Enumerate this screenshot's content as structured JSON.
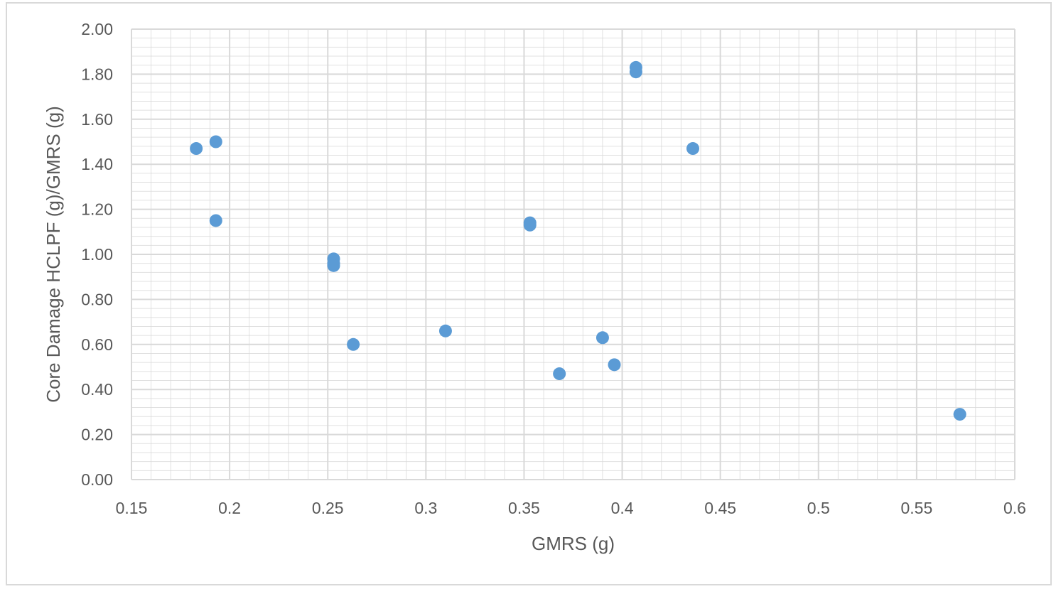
{
  "chart_data": {
    "type": "scatter",
    "title": "",
    "xlabel": "GMRS (g)",
    "ylabel": "Core Damage HCLPF (g)/GMRS (g)",
    "xlim": [
      0.15,
      0.6
    ],
    "ylim": [
      0.0,
      2.0
    ],
    "x_ticks": [
      "0.15",
      "0.2",
      "0.25",
      "0.3",
      "0.35",
      "0.4",
      "0.45",
      "0.5",
      "0.55",
      "0.6"
    ],
    "y_ticks": [
      "0.00",
      "0.20",
      "0.40",
      "0.60",
      "0.80",
      "1.00",
      "1.20",
      "1.40",
      "1.60",
      "1.80",
      "2.00"
    ],
    "grid": true,
    "minor_grid": true,
    "legend": "none",
    "marker_color": "#5b9bd5",
    "gridline_color": "#d9d9d9",
    "series": [
      {
        "points": [
          {
            "x": 0.183,
            "y": 1.47
          },
          {
            "x": 0.193,
            "y": 1.5
          },
          {
            "x": 0.193,
            "y": 1.15
          },
          {
            "x": 0.253,
            "y": 0.98
          },
          {
            "x": 0.253,
            "y": 0.96
          },
          {
            "x": 0.253,
            "y": 0.95
          },
          {
            "x": 0.263,
            "y": 0.6
          },
          {
            "x": 0.31,
            "y": 0.66
          },
          {
            "x": 0.353,
            "y": 1.14
          },
          {
            "x": 0.353,
            "y": 1.13
          },
          {
            "x": 0.368,
            "y": 0.47
          },
          {
            "x": 0.39,
            "y": 0.63
          },
          {
            "x": 0.396,
            "y": 0.51
          },
          {
            "x": 0.407,
            "y": 1.83
          },
          {
            "x": 0.407,
            "y": 1.81
          },
          {
            "x": 0.436,
            "y": 1.47
          },
          {
            "x": 0.572,
            "y": 0.29
          }
        ]
      }
    ]
  }
}
